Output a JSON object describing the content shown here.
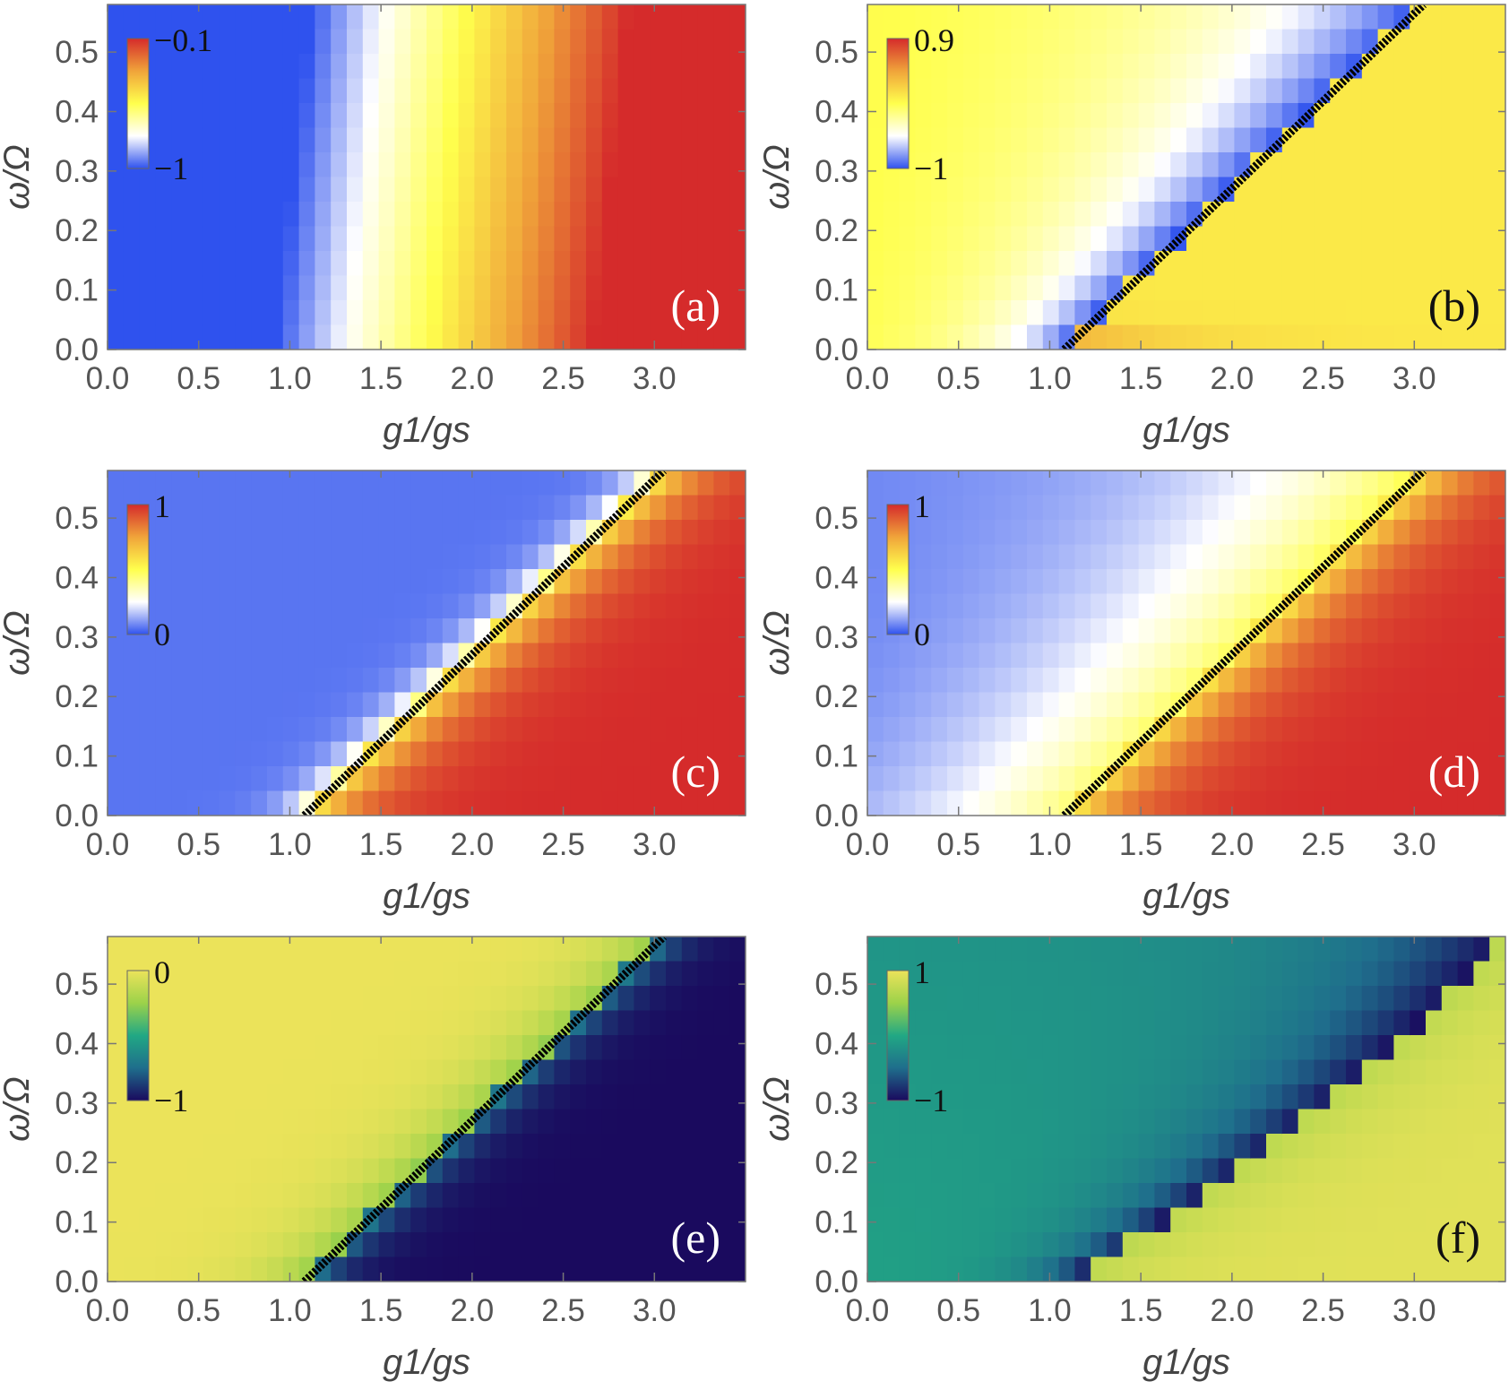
{
  "chart_data": [
    {
      "type": "heatmap",
      "panel_label": "(a)",
      "xlabel": "g1/gs",
      "ylabel": "ω/Ω",
      "xlim": [
        0.0,
        3.5
      ],
      "ylim": [
        0.0,
        0.58
      ],
      "x_ticks": [
        "0.0",
        "0.5",
        "1.0",
        "1.5",
        "2.0",
        "2.5",
        "3.0"
      ],
      "y_ticks": [
        "0.0",
        "0.1",
        "0.2",
        "0.3",
        "0.4",
        "0.5"
      ],
      "colorbar": {
        "max_label": "−0.1",
        "min_label": "−1",
        "range": [
          -1,
          -0.1
        ],
        "colors": [
          "#2f52ee",
          "#ffffff",
          "#ffff4d",
          "#f0a43a",
          "#d52b2b"
        ]
      },
      "critical_line": false,
      "panel_label_color": "#ffffff"
    },
    {
      "type": "heatmap",
      "panel_label": "(b)",
      "xlabel": "g1/gs",
      "ylabel": "ω/Ω",
      "xlim": [
        0.0,
        3.5
      ],
      "ylim": [
        0.0,
        0.58
      ],
      "x_ticks": [
        "0.0",
        "0.5",
        "1.0",
        "1.5",
        "2.0",
        "2.5",
        "3.0"
      ],
      "y_ticks": [
        "0.0",
        "0.1",
        "0.2",
        "0.3",
        "0.4",
        "0.5"
      ],
      "colorbar": {
        "max_label": "0.9",
        "min_label": "−1",
        "range": [
          -1,
          0.9
        ],
        "colors": [
          "#2f52ee",
          "#ffffff",
          "#ffff4d",
          "#f0a43a",
          "#d52b2b"
        ]
      },
      "critical_line": true,
      "panel_label_color": "#111111"
    },
    {
      "type": "heatmap",
      "panel_label": "(c)",
      "xlabel": "g1/gs",
      "ylabel": "ω/Ω",
      "xlim": [
        0.0,
        3.5
      ],
      "ylim": [
        0.0,
        0.58
      ],
      "x_ticks": [
        "0.0",
        "0.5",
        "1.0",
        "1.5",
        "2.0",
        "2.5",
        "3.0"
      ],
      "y_ticks": [
        "0.0",
        "0.1",
        "0.2",
        "0.3",
        "0.4",
        "0.5"
      ],
      "colorbar": {
        "max_label": "1",
        "min_label": "0",
        "range": [
          0,
          1
        ],
        "colors": [
          "#2f52ee",
          "#ffffff",
          "#ffff4d",
          "#f0a43a",
          "#d52b2b"
        ]
      },
      "critical_line": true,
      "panel_label_color": "#ffffff"
    },
    {
      "type": "heatmap",
      "panel_label": "(d)",
      "xlabel": "g1/gs",
      "ylabel": "ω/Ω",
      "xlim": [
        0.0,
        3.5
      ],
      "ylim": [
        0.0,
        0.58
      ],
      "x_ticks": [
        "0.0",
        "0.5",
        "1.0",
        "1.5",
        "2.0",
        "2.5",
        "3.0"
      ],
      "y_ticks": [
        "0.0",
        "0.1",
        "0.2",
        "0.3",
        "0.4",
        "0.5"
      ],
      "colorbar": {
        "max_label": "1",
        "min_label": "0",
        "range": [
          0,
          1
        ],
        "colors": [
          "#2f52ee",
          "#ffffff",
          "#ffff4d",
          "#f0a43a",
          "#d52b2b"
        ]
      },
      "critical_line": true,
      "panel_label_color": "#ffffff"
    },
    {
      "type": "heatmap",
      "panel_label": "(e)",
      "xlabel": "g1/gs",
      "ylabel": "ω/Ω",
      "xlim": [
        0.0,
        3.5
      ],
      "ylim": [
        0.0,
        0.58
      ],
      "x_ticks": [
        "0.0",
        "0.5",
        "1.0",
        "1.5",
        "2.0",
        "2.5",
        "3.0"
      ],
      "y_ticks": [
        "0.0",
        "0.1",
        "0.2",
        "0.3",
        "0.4",
        "0.5"
      ],
      "colorbar": {
        "max_label": "0",
        "min_label": "−1",
        "range": [
          -1,
          0
        ],
        "colors": [
          "#1a0a5e",
          "#1f6e8c",
          "#21a884",
          "#9cd24a",
          "#ebe35a"
        ]
      },
      "critical_line": true,
      "panel_label_color": "#ffffff"
    },
    {
      "type": "heatmap",
      "panel_label": "(f)",
      "xlabel": "g1/gs",
      "ylabel": "ω/Ω",
      "xlim": [
        0.0,
        3.5
      ],
      "ylim": [
        0.0,
        0.58
      ],
      "x_ticks": [
        "0.0",
        "0.5",
        "1.0",
        "1.5",
        "2.0",
        "2.5",
        "3.0"
      ],
      "y_ticks": [
        "0.0",
        "0.1",
        "0.2",
        "0.3",
        "0.4",
        "0.5"
      ],
      "colorbar": {
        "max_label": "1",
        "min_label": "−1",
        "range": [
          -1,
          1
        ],
        "colors": [
          "#1a0a5e",
          "#1f6e8c",
          "#21a884",
          "#9cd24a",
          "#ebe35a"
        ]
      },
      "critical_line": false,
      "panel_label_color": "#111111"
    }
  ]
}
